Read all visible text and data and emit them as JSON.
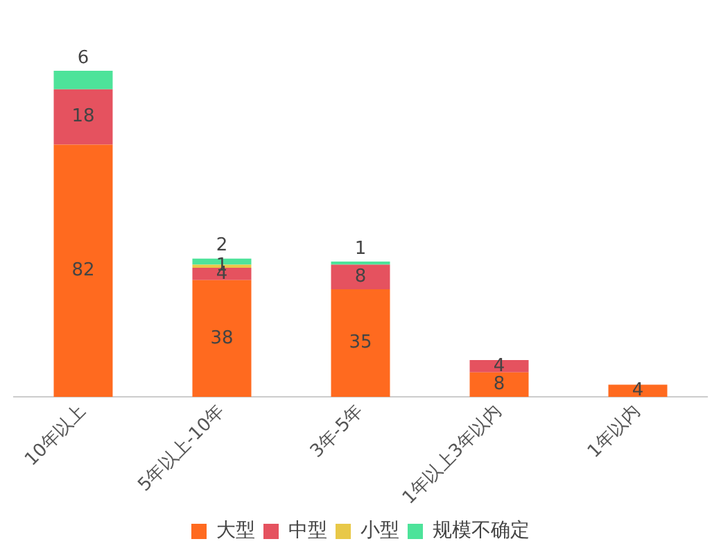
{
  "chart_data": {
    "type": "bar",
    "stacked": true,
    "categories": [
      "10年以上",
      "5年以上-10年",
      "3年-5年",
      "1年以上3年以内",
      "1年以内"
    ],
    "series": [
      {
        "name": "大型",
        "color": "#ff6a1f",
        "values": [
          82,
          38,
          35,
          8,
          4
        ]
      },
      {
        "name": "中型",
        "color": "#e5525f",
        "values": [
          18,
          4,
          8,
          4,
          null
        ]
      },
      {
        "name": "小型",
        "color": "#e8c848",
        "values": [
          null,
          1,
          null,
          null,
          null
        ]
      },
      {
        "name": "规模不确定",
        "color": "#4de39a",
        "values": [
          6,
          2,
          1,
          null,
          null
        ]
      }
    ],
    "tick_labels": "x",
    "grid": false,
    "legend": "bottom",
    "data_labels": true
  }
}
